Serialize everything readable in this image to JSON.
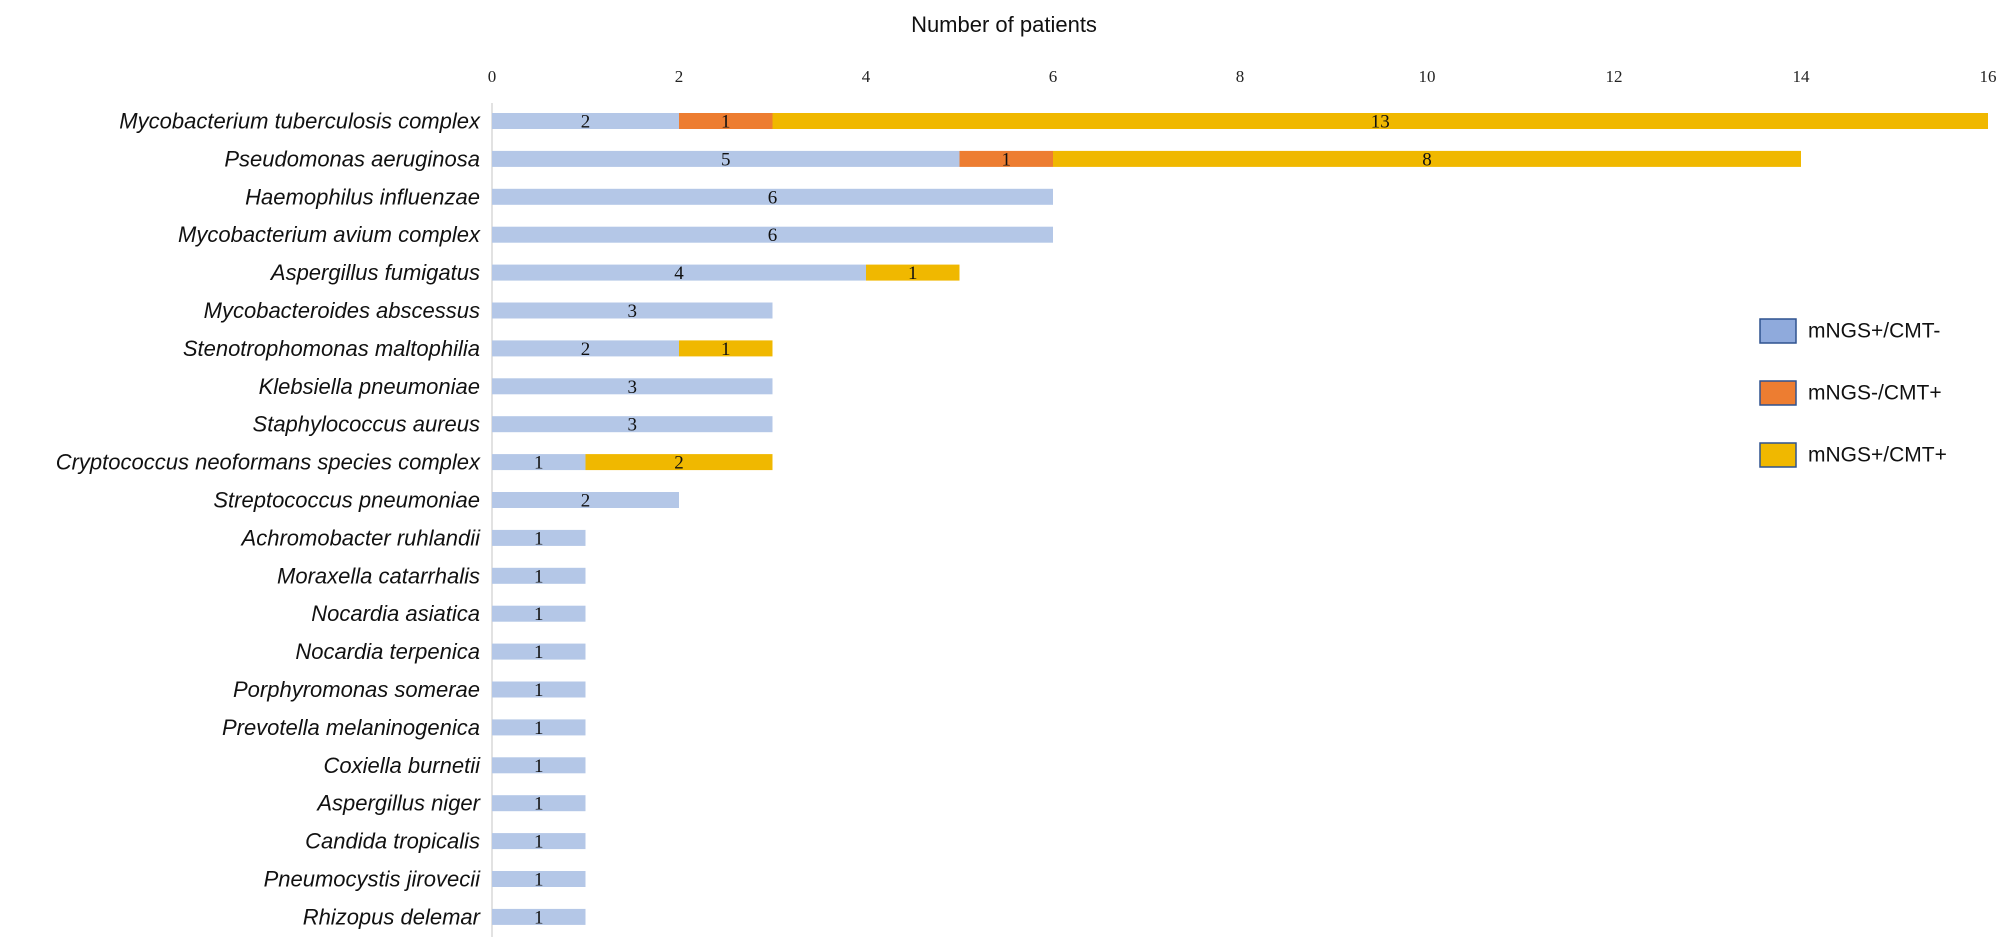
{
  "chart_data": {
    "type": "bar",
    "orientation": "horizontal",
    "stacked": true,
    "title": "",
    "xlabel": "Number of patients",
    "ylabel": "",
    "xlim": [
      0,
      16
    ],
    "xticks": [
      0,
      2,
      4,
      6,
      8,
      10,
      12,
      14,
      16
    ],
    "x_axis_position": "top",
    "legend_position": "right",
    "categories": [
      "Mycobacterium tuberculosis complex",
      "Pseudomonas aeruginosa",
      "Haemophilus influenzae",
      "Mycobacterium avium complex",
      "Aspergillus fumigatus",
      "Mycobacteroides abscessus",
      "Stenotrophomonas maltophilia",
      "Klebsiella pneumoniae",
      "Staphylococcus aureus",
      "Cryptococcus neoformans species complex",
      "Streptococcus pneumoniae",
      "Achromobacter ruhlandii",
      "Moraxella catarrhalis",
      "Nocardia asiatica",
      "Nocardia terpenica",
      "Porphyromonas somerae",
      "Prevotella melaninogenica",
      "Coxiella burnetii",
      "Aspergillus niger",
      "Candida tropicalis",
      "Pneumocystis jirovecii",
      "Rhizopus delemar"
    ],
    "series": [
      {
        "name": "mNGS+/CMT-",
        "bar_color": "#b4c7e7",
        "legend_fill": "#8faadc",
        "legend_stroke": "#2f528f",
        "values": [
          2,
          5,
          6,
          6,
          4,
          3,
          2,
          3,
          3,
          1,
          2,
          1,
          1,
          1,
          1,
          1,
          1,
          1,
          1,
          1,
          1,
          1
        ]
      },
      {
        "name": "mNGS-/CMT+",
        "bar_color": "#ed7d31",
        "legend_fill": "#ed7d31",
        "legend_stroke": "#2f528f",
        "values": [
          1,
          1,
          0,
          0,
          0,
          0,
          0,
          0,
          0,
          0,
          0,
          0,
          0,
          0,
          0,
          0,
          0,
          0,
          0,
          0,
          0,
          0
        ]
      },
      {
        "name": "mNGS+/CMT+",
        "bar_color": "#f0b800",
        "legend_fill": "#f0b800",
        "legend_stroke": "#2f528f",
        "values": [
          13,
          8,
          0,
          0,
          1,
          0,
          1,
          0,
          0,
          2,
          0,
          0,
          0,
          0,
          0,
          0,
          0,
          0,
          0,
          0,
          0,
          0
        ]
      }
    ]
  }
}
